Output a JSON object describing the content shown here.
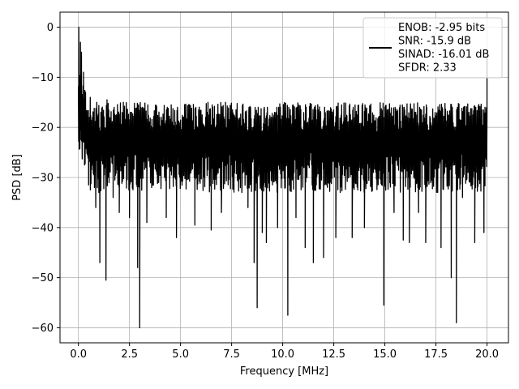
{
  "chart_data": {
    "type": "line",
    "title": "",
    "xlabel": "Frequency [MHz]",
    "ylabel": "PSD [dB]",
    "xlim": [
      -0.9,
      21.05
    ],
    "ylim": [
      -63,
      3
    ],
    "x_ticks": [
      0.0,
      2.5,
      5.0,
      7.5,
      10.0,
      12.5,
      15.0,
      17.5,
      20.0
    ],
    "x_tick_labels": [
      "0.0",
      "2.5",
      "5.0",
      "7.5",
      "10.0",
      "12.5",
      "15.0",
      "17.5",
      "20.0"
    ],
    "y_ticks": [
      0,
      -10,
      -20,
      -30,
      -40,
      -50,
      -60
    ],
    "y_tick_labels": [
      "0",
      "−10",
      "−20",
      "−30",
      "−40",
      "−50",
      "−60"
    ],
    "grid": true,
    "legend_position": "top-right",
    "line_color": "#000000",
    "series": [
      {
        "name": "ENOB: -2.95 bits\nSNR: -15.9 dB\nSINAD: -16.01 dB\nSFDR: 2.33",
        "legend_lines": [
          "ENOB: -2.95 bits",
          "SNR: -15.9 dB",
          "SINAD: -16.01 dB",
          "SFDR: 2.33"
        ],
        "x_range": [
          0.0,
          20.0
        ],
        "band_top": -18.0,
        "band_bottom": -29.0,
        "points": [
          [
            0.0,
            -12.5
          ],
          [
            0.02,
            0.0
          ],
          [
            0.05,
            -12.0
          ],
          [
            0.1,
            -3.0
          ],
          [
            0.12,
            -15.0
          ],
          [
            0.15,
            -5.0
          ],
          [
            0.2,
            -16.0
          ],
          [
            0.25,
            -9.0
          ],
          [
            0.3,
            -27.5
          ],
          [
            0.35,
            -13.0
          ],
          [
            0.5,
            -31.5
          ],
          [
            0.58,
            -14.0
          ],
          [
            0.85,
            -36.0
          ],
          [
            0.9,
            -15.0
          ],
          [
            1.0,
            -33.0
          ],
          [
            1.05,
            -47.0
          ],
          [
            1.1,
            -17.0
          ],
          [
            1.35,
            -50.5
          ],
          [
            1.4,
            -14.5
          ],
          [
            1.7,
            -34.0
          ],
          [
            1.75,
            -16.0
          ],
          [
            2.0,
            -37.0
          ],
          [
            2.2,
            -15.0
          ],
          [
            2.5,
            -38.0
          ],
          [
            2.6,
            -17.0
          ],
          [
            2.9,
            -48.0
          ],
          [
            2.95,
            -17.0
          ],
          [
            3.0,
            -60.0
          ],
          [
            3.05,
            -16.0
          ],
          [
            3.35,
            -39.0
          ],
          [
            3.4,
            -15.5
          ],
          [
            4.3,
            -38.0
          ],
          [
            4.35,
            -16.0
          ],
          [
            4.8,
            -42.0
          ],
          [
            4.85,
            -16.0
          ],
          [
            5.7,
            -39.5
          ],
          [
            5.75,
            -16.0
          ],
          [
            6.5,
            -40.5
          ],
          [
            6.55,
            -15.5
          ],
          [
            7.0,
            -37.0
          ],
          [
            7.2,
            -15.0
          ],
          [
            8.0,
            -33.0
          ],
          [
            8.05,
            -15.5
          ],
          [
            8.3,
            -36.0
          ],
          [
            8.35,
            -16.0
          ],
          [
            8.6,
            -47.0
          ],
          [
            8.65,
            -16.0
          ],
          [
            8.75,
            -56.0
          ],
          [
            8.8,
            -16.0
          ],
          [
            9.0,
            -41.0
          ],
          [
            9.1,
            -16.0
          ],
          [
            9.2,
            -43.0
          ],
          [
            9.25,
            -16.0
          ],
          [
            9.75,
            -40.0
          ],
          [
            9.8,
            -16.0
          ],
          [
            10.25,
            -57.5
          ],
          [
            10.3,
            -16.0
          ],
          [
            10.65,
            -38.0
          ],
          [
            10.7,
            -16.0
          ],
          [
            11.1,
            -44.0
          ],
          [
            11.15,
            -16.0
          ],
          [
            11.5,
            -47.0
          ],
          [
            11.55,
            -16.0
          ],
          [
            12.0,
            -46.0
          ],
          [
            12.05,
            -16.0
          ],
          [
            12.6,
            -42.0
          ],
          [
            12.65,
            -16.0
          ],
          [
            13.4,
            -42.0
          ],
          [
            13.45,
            -16.0
          ],
          [
            14.0,
            -40.0
          ],
          [
            14.05,
            -16.0
          ],
          [
            14.95,
            -55.5
          ],
          [
            15.0,
            -16.0
          ],
          [
            15.45,
            -37.0
          ],
          [
            15.5,
            -16.0
          ],
          [
            15.9,
            -42.5
          ],
          [
            15.95,
            -16.0
          ],
          [
            16.2,
            -43.0
          ],
          [
            16.25,
            -16.0
          ],
          [
            16.65,
            -37.0
          ],
          [
            16.7,
            -16.0
          ],
          [
            17.0,
            -43.0
          ],
          [
            17.05,
            -16.0
          ],
          [
            17.75,
            -44.0
          ],
          [
            17.8,
            -16.0
          ],
          [
            18.25,
            -50.0
          ],
          [
            18.3,
            -16.0
          ],
          [
            18.5,
            -59.0
          ],
          [
            18.55,
            -16.0
          ],
          [
            18.8,
            -34.0
          ],
          [
            18.85,
            -16.0
          ],
          [
            19.4,
            -43.0
          ],
          [
            19.45,
            -16.0
          ],
          [
            19.85,
            -41.0
          ],
          [
            19.9,
            -16.0
          ],
          [
            20.0,
            -6.0
          ]
        ]
      }
    ]
  }
}
